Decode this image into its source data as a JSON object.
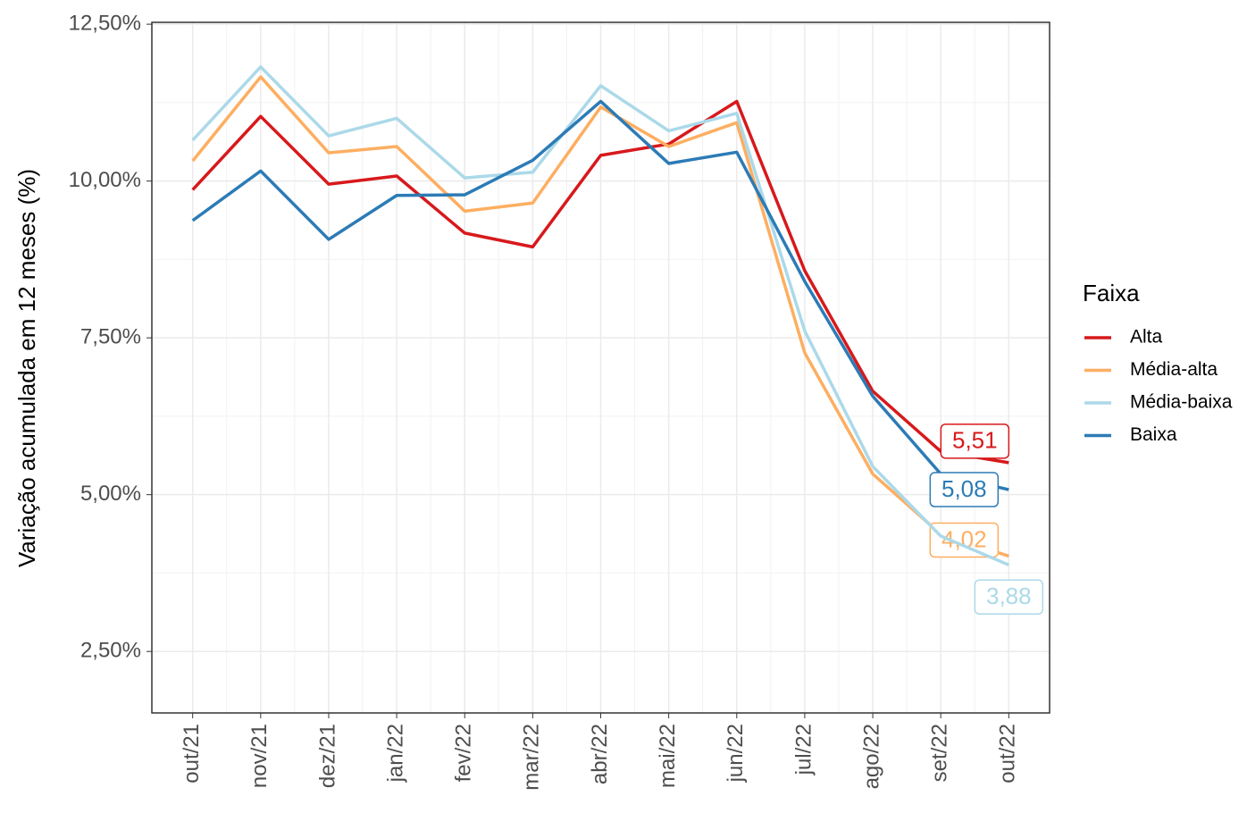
{
  "chart_data": {
    "type": "line",
    "y_label": "Variação acumulada em 12 meses (%)",
    "legend_title": "Faixa",
    "legend": "right",
    "grid": true,
    "categories": [
      "out/21",
      "nov/21",
      "dez/21",
      "jan/22",
      "fev/22",
      "mar/22",
      "abr/22",
      "mai/22",
      "jun/22",
      "jul/22",
      "ago/22",
      "set/22",
      "out/22"
    ],
    "ylim": [
      1.52,
      12.53
    ],
    "yticks": [
      {
        "value": 2.5,
        "label": "2,50%"
      },
      {
        "value": 5,
        "label": "5,00%"
      },
      {
        "value": 7.5,
        "label": "7,50%"
      },
      {
        "value": 10,
        "label": "10,00%"
      },
      {
        "value": 12.5,
        "label": "12,50%"
      }
    ],
    "series": [
      {
        "name": "Alta",
        "color": "#d7191c",
        "values": [
          9.86,
          11.03,
          9.95,
          10.08,
          9.17,
          8.95,
          10.41,
          10.59,
          11.27,
          8.57,
          6.65,
          5.69,
          5.51
        ],
        "value_labels": [
          null,
          null,
          null,
          null,
          null,
          null,
          null,
          null,
          null,
          null,
          null,
          null,
          "5,51"
        ]
      },
      {
        "name": "Média-alta",
        "color": "#fdae61",
        "values": [
          10.32,
          11.66,
          10.45,
          10.55,
          9.52,
          9.65,
          11.18,
          10.55,
          10.93,
          7.26,
          5.33,
          4.37,
          4.02
        ],
        "value_labels": [
          null,
          null,
          null,
          null,
          null,
          null,
          null,
          null,
          null,
          null,
          null,
          null,
          "4,02"
        ]
      },
      {
        "name": "Média-baixa",
        "color": "#abd9e9",
        "values": [
          10.65,
          11.82,
          10.72,
          11.0,
          10.05,
          10.14,
          11.52,
          10.8,
          11.08,
          7.61,
          5.45,
          4.34,
          3.88
        ],
        "value_labels": [
          null,
          null,
          null,
          null,
          null,
          null,
          null,
          null,
          null,
          null,
          null,
          null,
          "3,88"
        ]
      },
      {
        "name": "Baixa",
        "color": "#2c7bb6",
        "values": [
          9.37,
          10.16,
          9.07,
          9.77,
          9.78,
          10.33,
          11.27,
          10.28,
          10.46,
          8.4,
          6.57,
          5.33,
          5.08
        ],
        "value_labels": [
          null,
          null,
          null,
          null,
          null,
          null,
          null,
          null,
          null,
          null,
          null,
          null,
          "5,08"
        ]
      }
    ]
  }
}
